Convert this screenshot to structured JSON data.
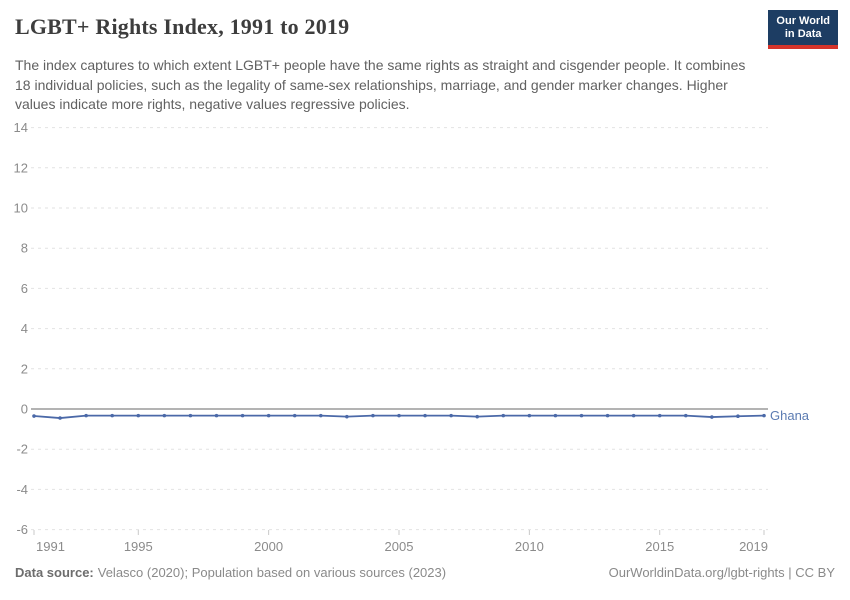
{
  "header": {
    "title": "LGBT+ Rights Index, 1991 to 2019",
    "subtitle": "The index captures to which extent LGBT+ people have the same rights as straight and cisgender people. It combines 18 individual policies, such as the legality of same-sex relationships, marriage, and gender marker changes. Higher values indicate more rights, negative values regressive policies.",
    "logo": {
      "line1": "Our World",
      "line2": "in Data"
    }
  },
  "chart_data": {
    "type": "line",
    "title": "LGBT+ Rights Index, 1991 to 2019",
    "x": [
      1991,
      1992,
      1993,
      1994,
      1995,
      1996,
      1997,
      1998,
      1999,
      2000,
      2001,
      2002,
      2003,
      2004,
      2005,
      2006,
      2007,
      2008,
      2009,
      2010,
      2011,
      2012,
      2013,
      2014,
      2015,
      2016,
      2017,
      2018,
      2019
    ],
    "series": [
      {
        "name": "Ghana",
        "values": [
          -0.35,
          -0.45,
          -0.33,
          -0.33,
          -0.33,
          -0.33,
          -0.33,
          -0.33,
          -0.33,
          -0.33,
          -0.33,
          -0.33,
          -0.38,
          -0.33,
          -0.33,
          -0.33,
          -0.33,
          -0.38,
          -0.33,
          -0.33,
          -0.33,
          -0.33,
          -0.33,
          -0.33,
          -0.33,
          -0.33,
          -0.4,
          -0.36,
          -0.33
        ]
      }
    ],
    "xlabel": "",
    "ylabel": "",
    "ylim": [
      -6,
      14
    ],
    "xlim": [
      1991,
      2019
    ],
    "yticks": [
      -6,
      -4,
      -2,
      0,
      2,
      4,
      6,
      8,
      10,
      12,
      14
    ],
    "xticks": [
      1991,
      1995,
      2000,
      2005,
      2010,
      2015,
      2019
    ],
    "grid": "horizontal-dashed",
    "zero_line": true,
    "legend_position": "end-of-line-label"
  },
  "footer": {
    "source_label": "Data source:",
    "source_text": "Velasco (2020); Population based on various sources (2023)",
    "link_text": "OurWorldinData.org/lgbt-rights | CC BY"
  },
  "colors": {
    "series_line": "#4b69a8",
    "series_label": "#5b7bb2",
    "logo_bg": "#1d3d63",
    "logo_accent": "#d5342b",
    "grid": "#e2e2e2",
    "zero_line": "#a8a8a8",
    "axis_text": "#8b8b8b",
    "tick": "#c9c9c9"
  }
}
